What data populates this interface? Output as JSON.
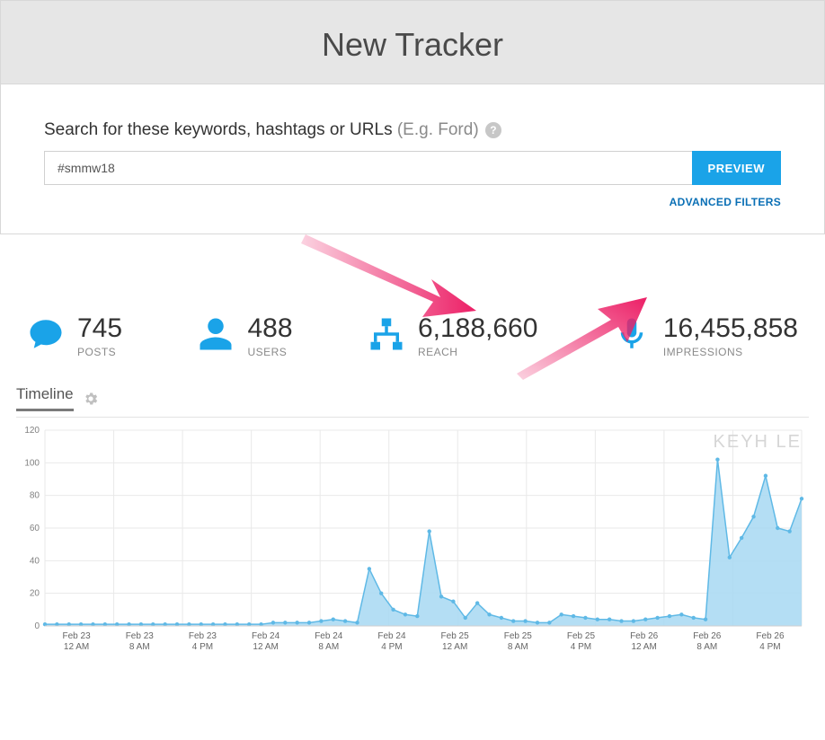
{
  "header": {
    "title": "New Tracker"
  },
  "search": {
    "label": "Search for these keywords, hashtags or URLs",
    "hint": "(E.g. Ford)",
    "value": "#smmw18",
    "preview_btn": "PREVIEW",
    "advanced_filters": "ADVANCED FILTERS"
  },
  "stats": [
    {
      "icon": "speech",
      "value": "745",
      "label": "POSTS"
    },
    {
      "icon": "user",
      "value": "488",
      "label": "USERS"
    },
    {
      "icon": "network",
      "value": "6,188,660",
      "label": "REACH"
    },
    {
      "icon": "mic",
      "value": "16,455,858",
      "label": "IMPRESSIONS"
    }
  ],
  "timeline": {
    "tab_label": "Timeline",
    "watermark": "KEYH   LE",
    "chart": {
      "type": "area-line",
      "ylim": [
        0,
        120
      ],
      "ytick_step": 20,
      "yticks": [
        0,
        20,
        40,
        60,
        80,
        100,
        120
      ],
      "grid_color": "#e9e9e9",
      "axis_color": "#cfcfcf",
      "fill_color": "#a7d8f2",
      "fill_opacity": 0.85,
      "line_color": "#5fb9e6",
      "line_width": 1.5,
      "marker_color": "#5fb9e6",
      "marker_radius": 2.2,
      "background_color": "#ffffff",
      "tick_label_color": "#808080",
      "tick_label_fontsize": 10,
      "x_labels": [
        {
          "l1": "Feb 23",
          "l2": "12 AM"
        },
        {
          "l1": "Feb 23",
          "l2": "8 AM"
        },
        {
          "l1": "Feb 23",
          "l2": "4 PM"
        },
        {
          "l1": "Feb 24",
          "l2": "12 AM"
        },
        {
          "l1": "Feb 24",
          "l2": "8 AM"
        },
        {
          "l1": "Feb 24",
          "l2": "4 PM"
        },
        {
          "l1": "Feb 25",
          "l2": "12 AM"
        },
        {
          "l1": "Feb 25",
          "l2": "8 AM"
        },
        {
          "l1": "Feb 25",
          "l2": "4 PM"
        },
        {
          "l1": "Feb 26",
          "l2": "12 AM"
        },
        {
          "l1": "Feb 26",
          "l2": "8 AM"
        },
        {
          "l1": "Feb 26",
          "l2": "4 PM"
        }
      ],
      "series": [
        1,
        1,
        1,
        1,
        1,
        1,
        1,
        1,
        1,
        1,
        1,
        1,
        1,
        1,
        1,
        1,
        1,
        1,
        1,
        2,
        2,
        2,
        2,
        3,
        4,
        3,
        2,
        35,
        20,
        10,
        7,
        6,
        58,
        18,
        15,
        5,
        14,
        7,
        5,
        3,
        3,
        2,
        2,
        7,
        6,
        5,
        4,
        4,
        3,
        3,
        4,
        5,
        6,
        7,
        5,
        4,
        102,
        42,
        54,
        67,
        92,
        60,
        58,
        78
      ]
    }
  },
  "colors": {
    "accent": "#1aa3e8",
    "header_bg": "#e6e6e6",
    "arrow": "#ec1f66"
  }
}
